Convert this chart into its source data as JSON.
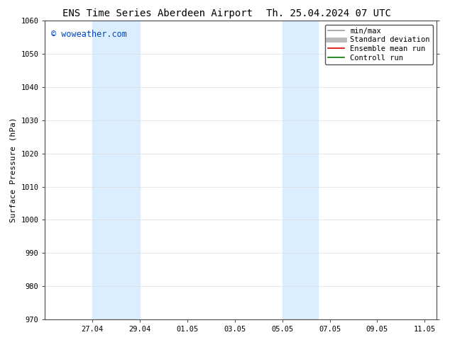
{
  "title_left": "ENS Time Series Aberdeen Airport",
  "title_right": "Th. 25.04.2024 07 UTC",
  "ylabel": "Surface Pressure (hPa)",
  "ylim": [
    970,
    1060
  ],
  "yticks": [
    970,
    980,
    990,
    1000,
    1010,
    1020,
    1030,
    1040,
    1050,
    1060
  ],
  "xlim": [
    0,
    16.5
  ],
  "xtick_labels": [
    "27.04",
    "29.04",
    "01.05",
    "03.05",
    "05.05",
    "07.05",
    "09.05",
    "11.05"
  ],
  "xtick_positions": [
    2,
    4,
    6,
    8,
    10,
    12,
    14,
    16
  ],
  "watermark": "© woweather.com",
  "watermark_color": "#0044bb",
  "bg_color": "#ffffff",
  "plot_bg_color": "#ffffff",
  "shade_bands": [
    {
      "x_start": 2,
      "x_end": 4,
      "color": "#daeeff"
    },
    {
      "x_start": 10,
      "x_end": 11.5,
      "color": "#daeeff"
    }
  ],
  "legend_items": [
    {
      "label": "min/max",
      "color": "#999999",
      "lw": 1.2,
      "ls": "-"
    },
    {
      "label": "Standard deviation",
      "color": "#bbbbbb",
      "lw": 5,
      "ls": "-"
    },
    {
      "label": "Ensemble mean run",
      "color": "#dd0000",
      "lw": 1.2,
      "ls": "-"
    },
    {
      "label": "Controll run",
      "color": "#007700",
      "lw": 1.2,
      "ls": "-"
    }
  ],
  "title_fontsize": 10,
  "axis_label_fontsize": 8,
  "tick_fontsize": 7.5,
  "legend_fontsize": 7.5,
  "watermark_fontsize": 8.5,
  "spine_color": "#555555",
  "grid_color": "#dddddd",
  "grid_lw": 0.5,
  "tick_color": "#555555"
}
